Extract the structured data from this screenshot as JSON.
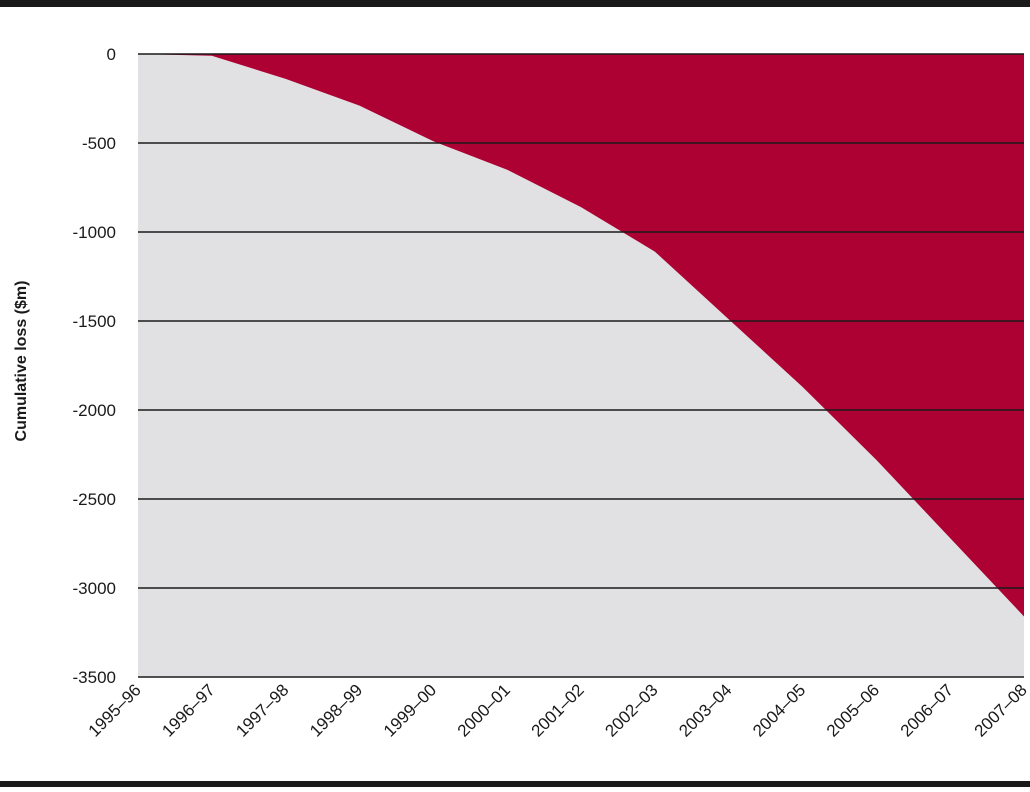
{
  "chart_data": {
    "type": "area",
    "title": "",
    "xlabel": "",
    "ylabel": "Cumulative loss ($m)",
    "categories": [
      "1995–96",
      "1996–97",
      "1997–98",
      "1998–99",
      "1999–00",
      "2000–01",
      "2001–02",
      "2002–03",
      "2003–04",
      "2004–05",
      "2005–06",
      "2006–07",
      "2007–08"
    ],
    "series": [
      {
        "values": [
          0,
          -10,
          -140,
          -290,
          -490,
          -650,
          -860,
          -1110,
          -1490,
          -1870,
          -2280,
          -2720,
          -3160
        ]
      }
    ],
    "ylim": [
      -3500,
      0
    ],
    "yticks": [
      0,
      -500,
      -1000,
      -1500,
      -2000,
      -2500,
      -3000,
      -3500
    ],
    "ytick_labels": [
      "0",
      "-500",
      "-1000",
      "-1500",
      "-2000",
      "-2500",
      "-3000",
      "-3500"
    ],
    "grid": "horizontal",
    "legend": "none",
    "colors": {
      "loss_area": "#ad0033",
      "background_area": "#e1e1e3",
      "gridline": "#1a1a1a",
      "frame_rule": "#1a1a1a"
    }
  }
}
